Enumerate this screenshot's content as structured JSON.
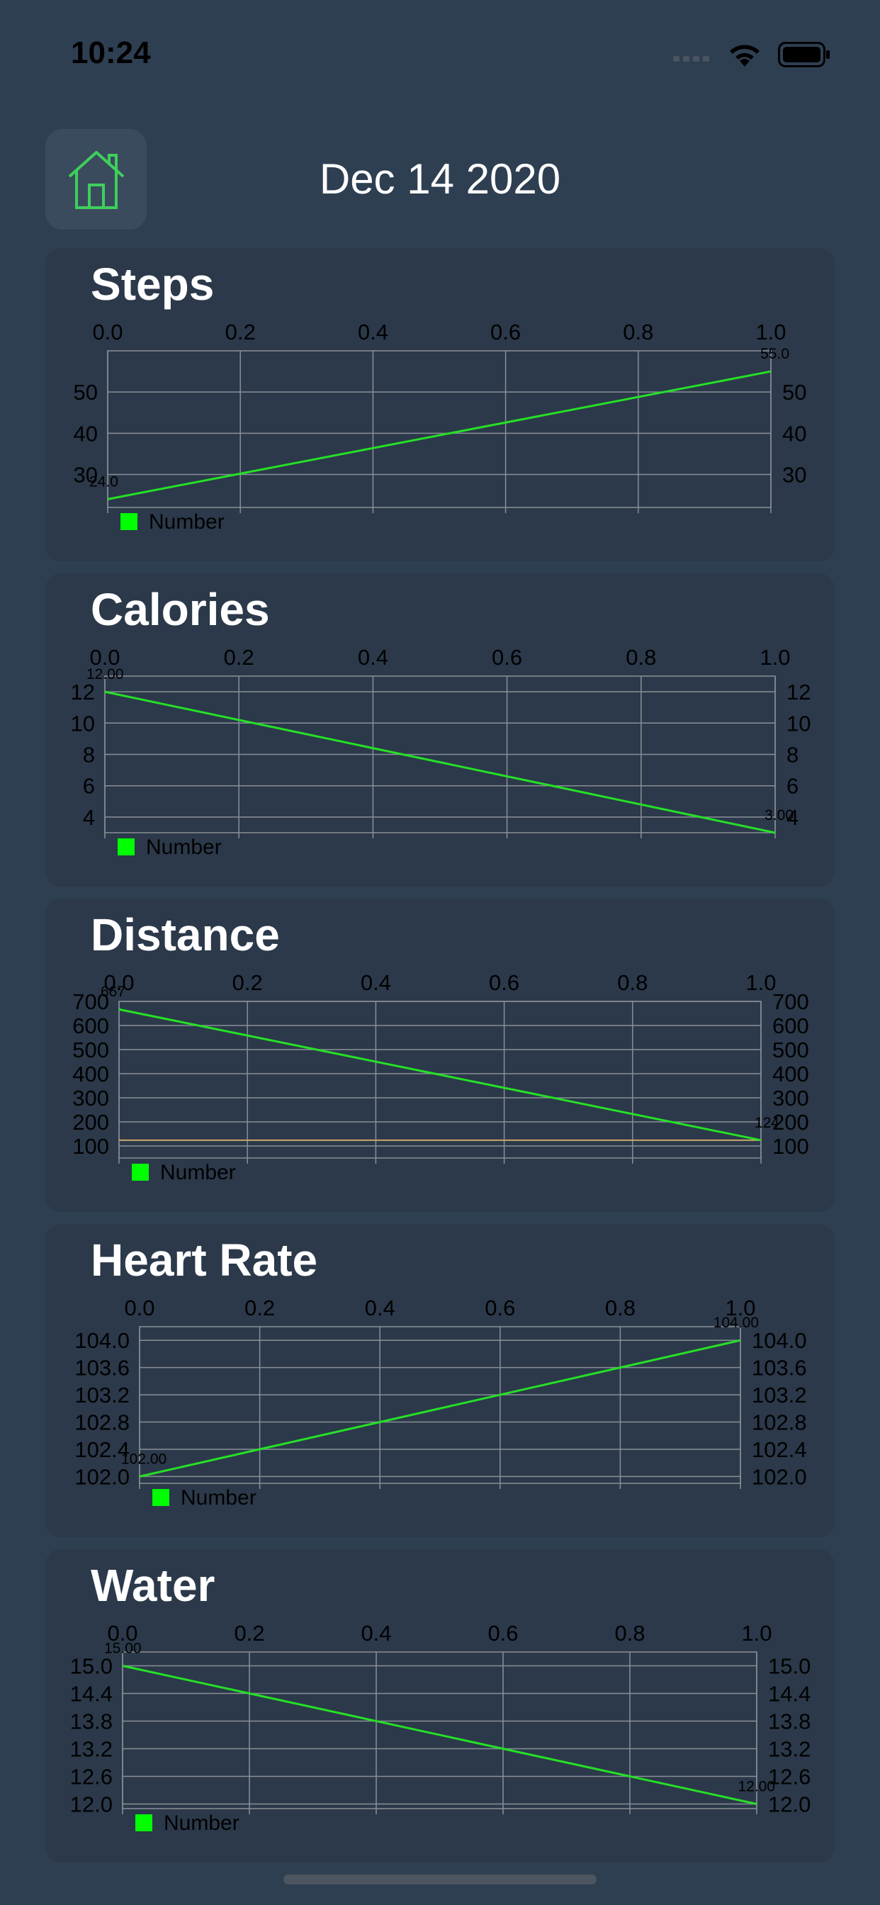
{
  "status_bar": {
    "time": "10:24"
  },
  "header": {
    "date": "Dec 14 2020",
    "home_icon": "house-icon"
  },
  "colors": {
    "background": "#2f3f52",
    "card": "#2b394a",
    "line": "#26e026",
    "legend": "#00ff00",
    "grid": "#8a8f96"
  },
  "chart_data": [
    {
      "type": "line",
      "title": "Steps",
      "x_ticks": [
        "0.0",
        "0.2",
        "0.4",
        "0.6",
        "0.8",
        "1.0"
      ],
      "xlim": [
        0,
        1
      ],
      "y_ticks": [
        "30",
        "40",
        "50"
      ],
      "ylim": [
        22,
        60
      ],
      "series": [
        {
          "name": "Number",
          "x": [
            0,
            1
          ],
          "values": [
            24.0,
            55.0
          ]
        }
      ],
      "point_labels": [
        "24.0",
        "55.0"
      ],
      "legend": "bottom-left",
      "grid": true
    },
    {
      "type": "line",
      "title": "Calories",
      "x_ticks": [
        "0.0",
        "0.2",
        "0.4",
        "0.6",
        "0.8",
        "1.0"
      ],
      "xlim": [
        0,
        1
      ],
      "y_ticks": [
        "4",
        "6",
        "8",
        "10",
        "12"
      ],
      "ylim": [
        3,
        13
      ],
      "series": [
        {
          "name": "Number",
          "x": [
            0,
            1
          ],
          "values": [
            12.0,
            3.0
          ]
        }
      ],
      "point_labels": [
        "12.00",
        "3.00"
      ],
      "legend": "bottom-left",
      "grid": true
    },
    {
      "type": "line",
      "title": "Distance",
      "x_ticks": [
        "0.0",
        "0.2",
        "0.4",
        "0.6",
        "0.8",
        "1.0"
      ],
      "xlim": [
        0,
        1
      ],
      "y_ticks": [
        "100",
        "200",
        "300",
        "400",
        "500",
        "600",
        "700"
      ],
      "ylim": [
        50,
        700
      ],
      "series": [
        {
          "name": "Number",
          "x": [
            0,
            1
          ],
          "values": [
            667,
            124
          ]
        }
      ],
      "point_labels": [
        "667",
        "124"
      ],
      "reference_line": 124,
      "legend": "bottom-left",
      "grid": true
    },
    {
      "type": "line",
      "title": "Heart Rate",
      "x_ticks": [
        "0.0",
        "0.2",
        "0.4",
        "0.6",
        "0.8",
        "1.0"
      ],
      "xlim": [
        0,
        1
      ],
      "y_ticks": [
        "102.0",
        "102.4",
        "102.8",
        "103.2",
        "103.6",
        "104.0"
      ],
      "ylim": [
        101.9,
        104.2
      ],
      "series": [
        {
          "name": "Number",
          "x": [
            0,
            1
          ],
          "values": [
            102.0,
            104.0
          ]
        }
      ],
      "point_labels": [
        "102.00",
        "104.00"
      ],
      "legend": "bottom-left",
      "grid": true
    },
    {
      "type": "line",
      "title": "Water",
      "x_ticks": [
        "0.0",
        "0.2",
        "0.4",
        "0.6",
        "0.8",
        "1.0"
      ],
      "xlim": [
        0,
        1
      ],
      "y_ticks": [
        "12.0",
        "12.6",
        "13.2",
        "13.8",
        "14.4",
        "15.0"
      ],
      "ylim": [
        11.9,
        15.3
      ],
      "series": [
        {
          "name": "Number",
          "x": [
            0,
            1
          ],
          "values": [
            15.0,
            12.0
          ]
        }
      ],
      "point_labels": [
        "15.00",
        "12.00"
      ],
      "legend": "bottom-left",
      "grid": true
    }
  ]
}
